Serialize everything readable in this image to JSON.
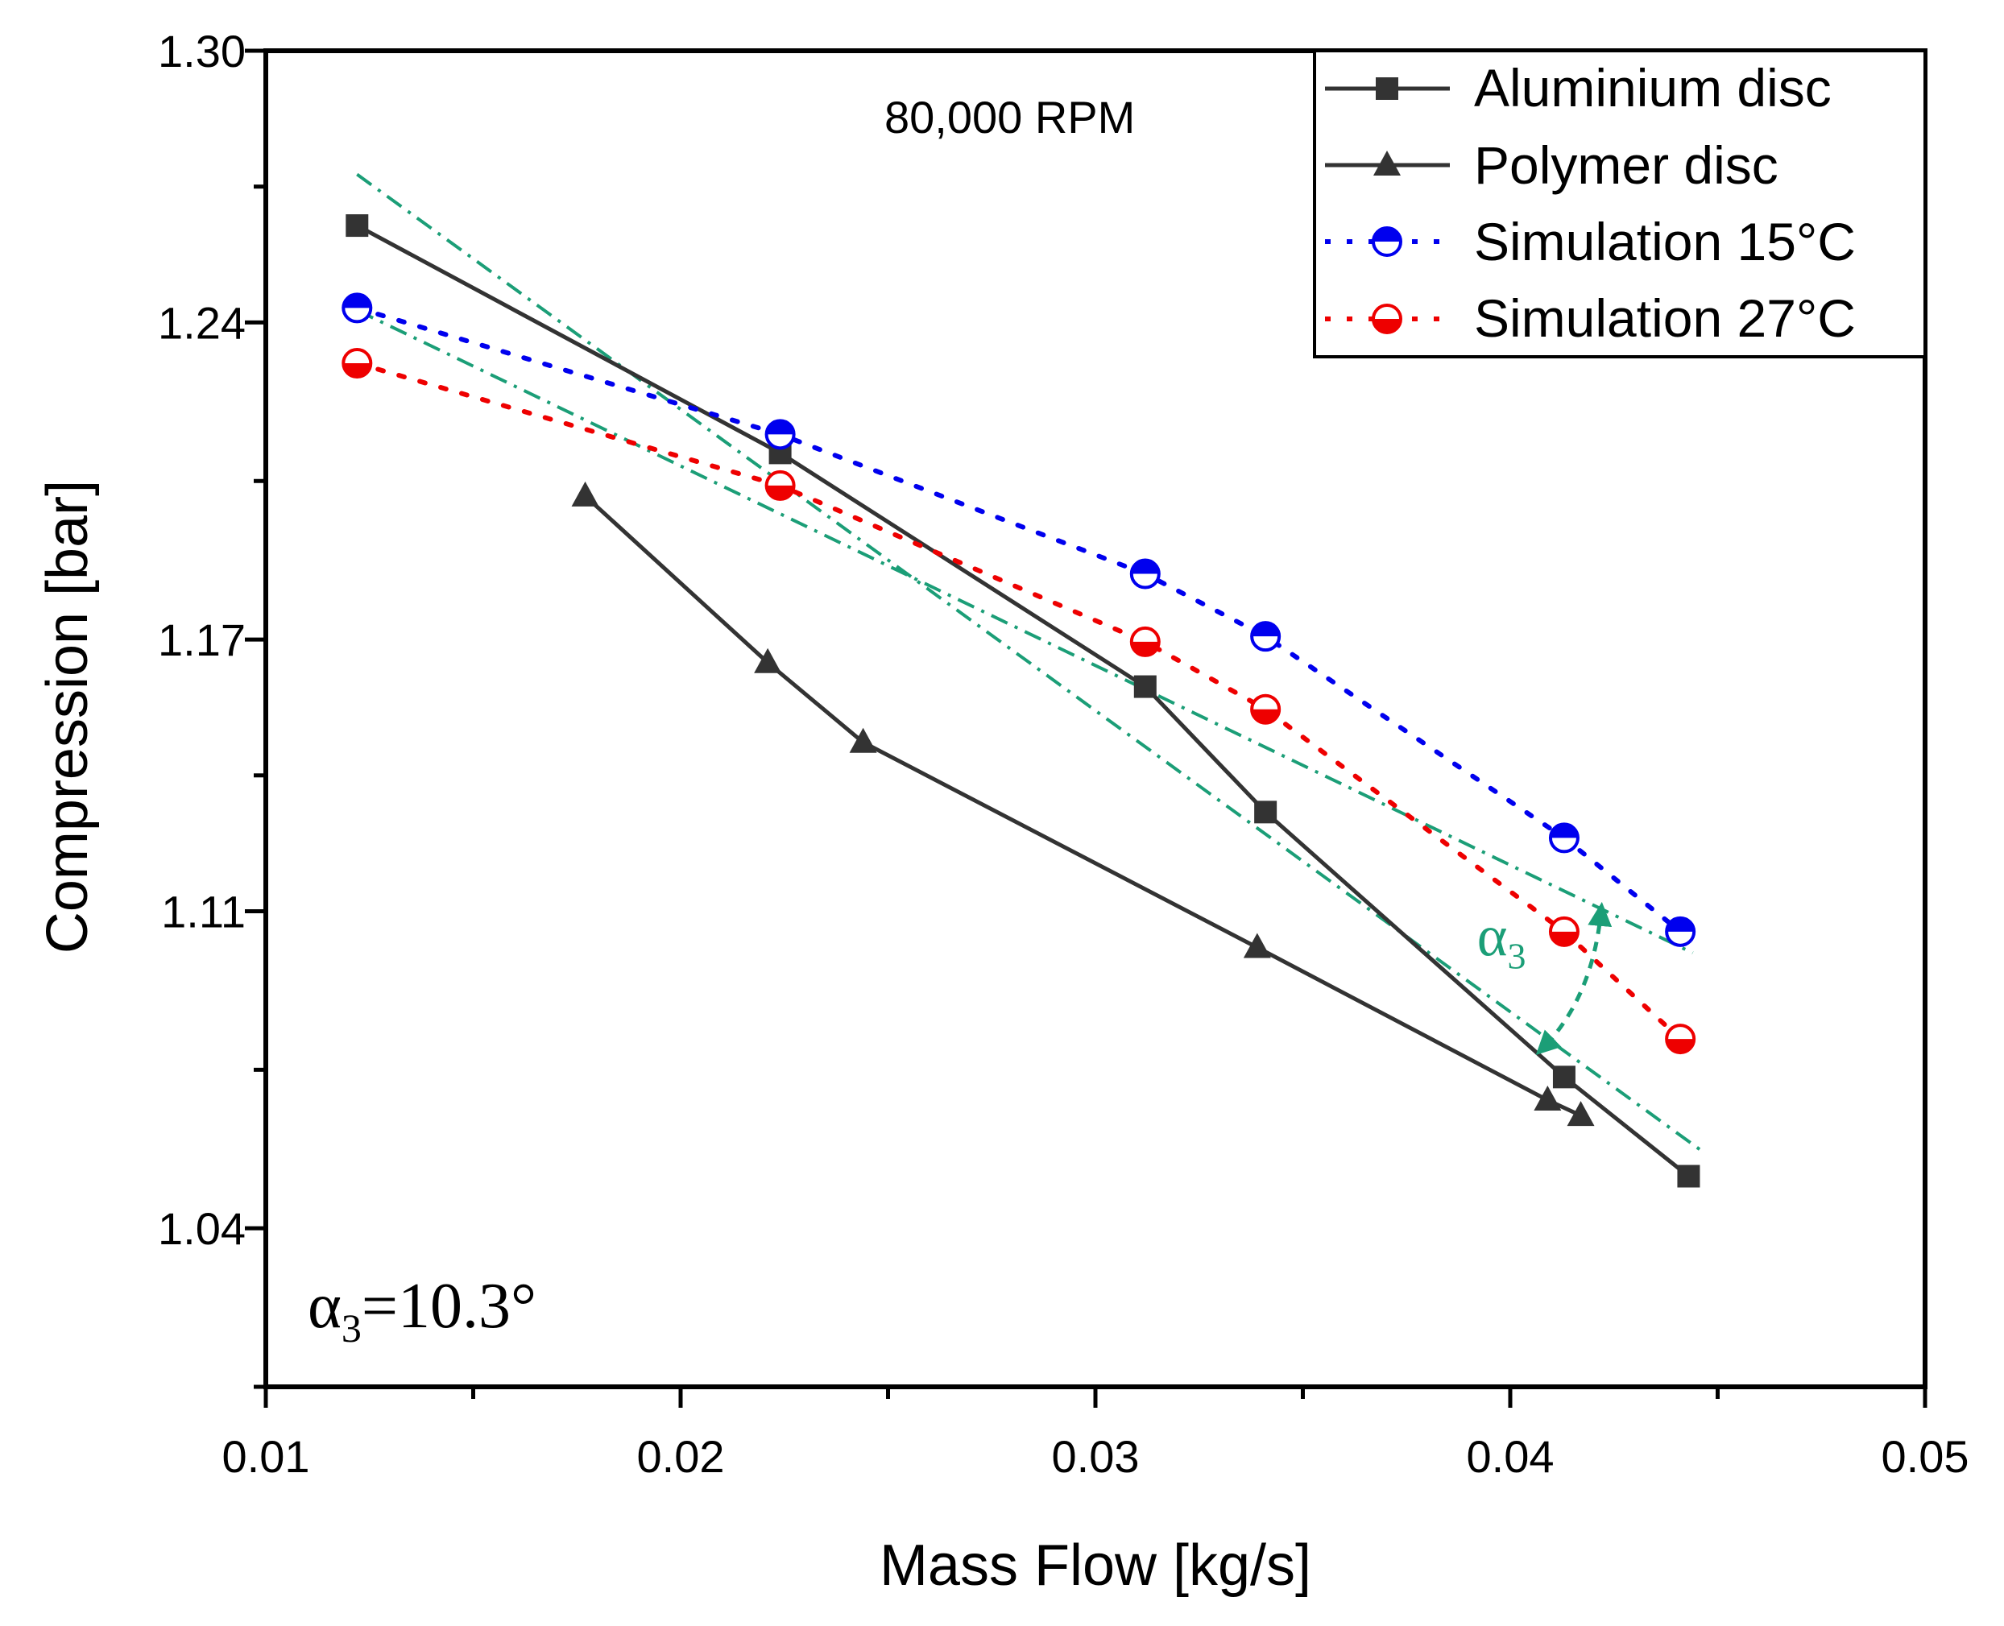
{
  "chart_data": {
    "type": "line",
    "xlabel": "Mass Flow [kg/s]",
    "ylabel": "Compression [bar]",
    "xlim": [
      0.01,
      0.05
    ],
    "ylim": [
      1.005,
      1.3
    ],
    "x_ticks": [
      "0.01",
      "0.02",
      "0.03",
      "0.04",
      "0.05"
    ],
    "x_tick_values": [
      0.01,
      0.02,
      0.03,
      0.04,
      0.05
    ],
    "y_ticks": [
      "1.04",
      "1.11",
      "1.17",
      "1.24",
      "1.30"
    ],
    "y_tick_values": [
      1.04,
      1.11,
      1.17,
      1.24,
      1.3
    ],
    "legend_position": "top-right",
    "annotations": {
      "rpm": "80,000 RPM",
      "alpha_label": {
        "symbol": "α",
        "subscript": "3",
        "equals_value": "=10.3°"
      },
      "arrow_label": {
        "symbol": "α",
        "subscript": "3"
      }
    },
    "colors": {
      "aluminium": "#333333",
      "polymer": "#333333",
      "sim15": "#0000ee",
      "sim27": "#ee0000",
      "trend": "#1b9e77"
    },
    "series": [
      {
        "name": "Aluminium disc",
        "style": "solid",
        "marker": "square",
        "x": [
          0.0122,
          0.0224,
          0.0312,
          0.0341,
          0.0413,
          0.0443
        ],
        "y": [
          1.2614,
          1.2112,
          1.1596,
          1.1319,
          1.0734,
          1.0515
        ]
      },
      {
        "name": "Polymer disc",
        "style": "solid",
        "marker": "triangle",
        "x": [
          0.0177,
          0.0221,
          0.0244,
          0.0339,
          0.0409,
          0.0417
        ],
        "y": [
          1.2017,
          1.1649,
          1.1473,
          1.102,
          1.0683,
          1.0649
        ]
      },
      {
        "name": "Simulation 15°C",
        "style": "dotted",
        "marker": "half-circle",
        "x": [
          0.0122,
          0.0224,
          0.0312,
          0.0341,
          0.0413,
          0.0441
        ],
        "y": [
          1.2432,
          1.2153,
          1.1845,
          1.1707,
          1.1262,
          1.1055
        ]
      },
      {
        "name": "Simulation 27°C",
        "style": "dotted",
        "marker": "half-circle",
        "x": [
          0.0122,
          0.0224,
          0.0312,
          0.0341,
          0.0413,
          0.0441
        ],
        "y": [
          1.231,
          1.204,
          1.1695,
          1.1546,
          1.1055,
          1.0818
        ]
      }
    ],
    "trend_lines": [
      {
        "name": "steep-trend",
        "x": [
          0.0122,
          0.0446
        ],
        "y": [
          1.2727,
          1.0572
        ]
      },
      {
        "name": "shallow-trend",
        "x": [
          0.0122,
          0.0444
        ],
        "y": [
          1.2427,
          1.1008
        ]
      }
    ],
    "angle_arc": {
      "label_x": 0.0392,
      "label_y": 1.102,
      "start": [
        0.0422,
        1.111
      ],
      "end": [
        0.0407,
        1.079
      ]
    }
  }
}
